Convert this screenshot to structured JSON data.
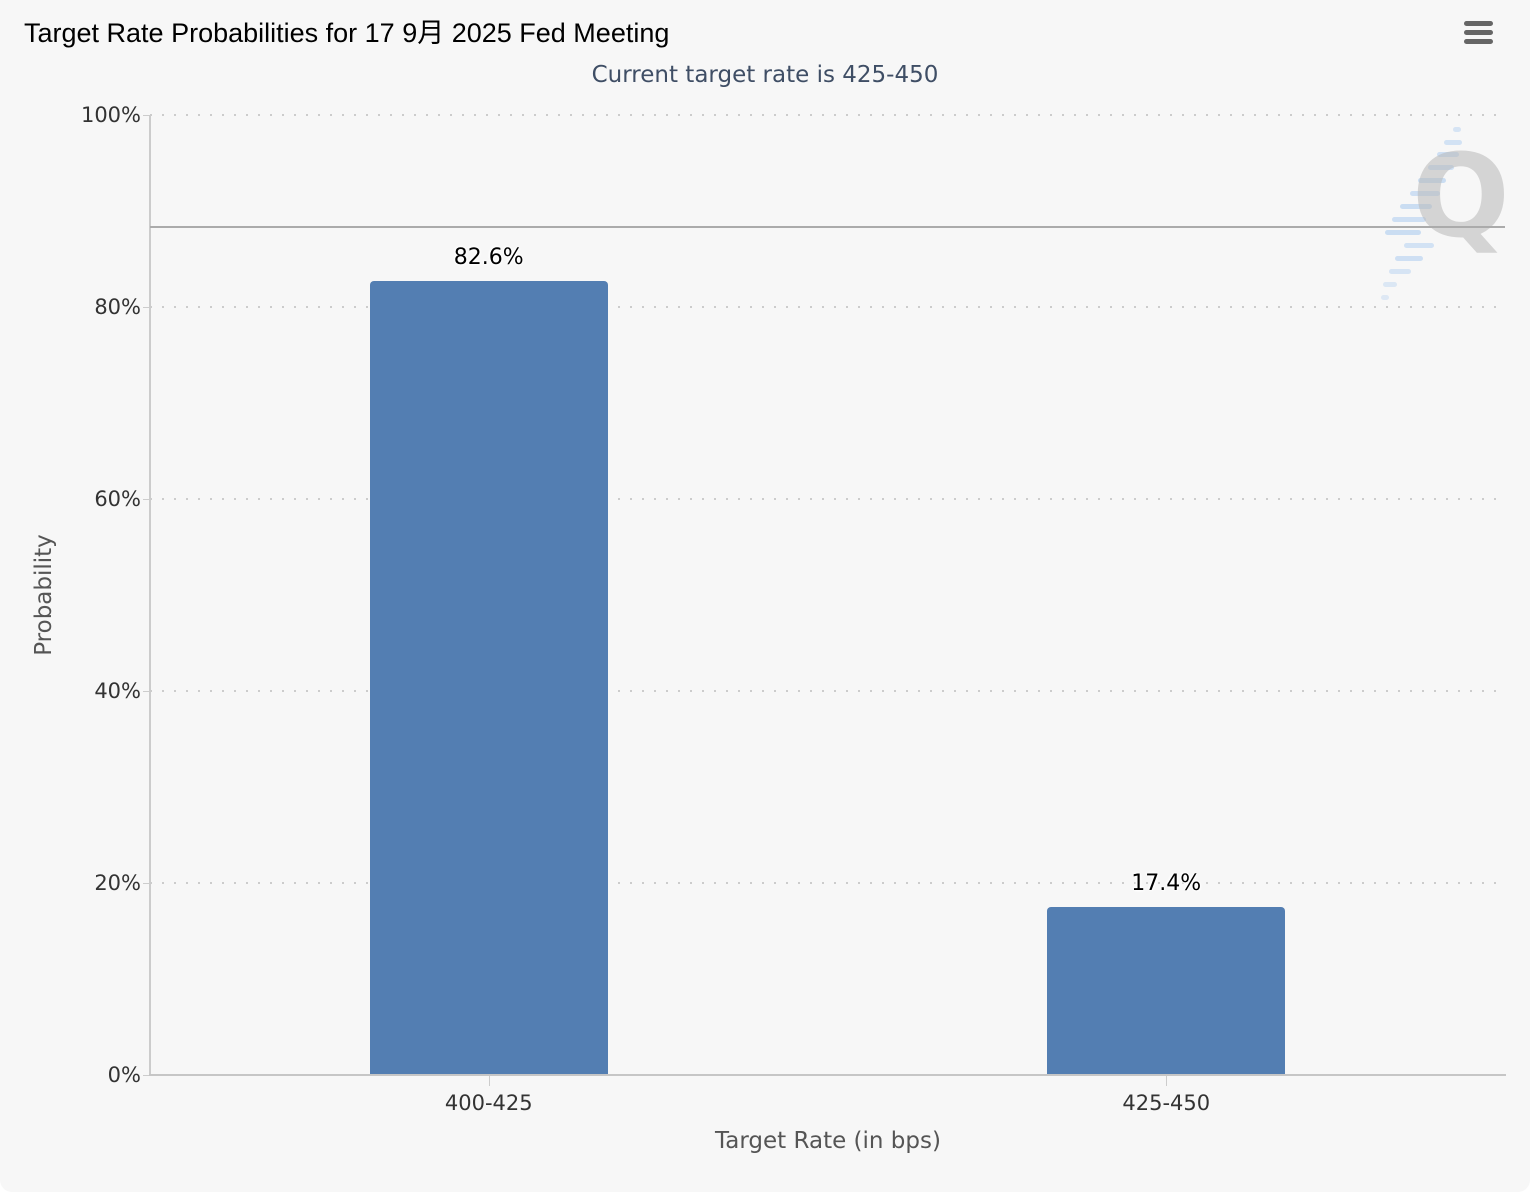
{
  "header": {
    "title": "Target Rate Probabilities for 17 9月 2025 Fed Meeting",
    "subtitle": "Current target rate is 425-450",
    "menu_icon": "hamburger-icon"
  },
  "chart_data": {
    "type": "bar",
    "title": "Target Rate Probabilities for 17 9月 2025 Fed Meeting",
    "subtitle": "Current target rate is 425-450",
    "categories": [
      "400-425",
      "425-450"
    ],
    "values": [
      82.6,
      17.4
    ],
    "value_labels": [
      "82.6%",
      "17.4%"
    ],
    "xlabel": "Target Rate (in bps)",
    "ylabel": "Probability",
    "ylim": [
      0,
      100
    ],
    "ytick_values": [
      0,
      20,
      40,
      60,
      80,
      100
    ],
    "ytick_labels": [
      "0%",
      "20%",
      "40%",
      "60%",
      "80%",
      "100%"
    ],
    "grid": "dotted-horizontal",
    "legend": "none",
    "reference_line_pct": 88.3,
    "bar_color": "#537eb2",
    "colors": {
      "panel_background": "#f7f7f7",
      "grid": "#cccccc",
      "axis": "#c6c6c6",
      "tick_text": "#333333",
      "axis_title": "#555555",
      "subtitle": "#3f4e65",
      "title": "#000000",
      "reference_line": "#ababab",
      "menu_icon": "#666666",
      "watermark": "#b9b9b9",
      "watermark_accent": "#a5c8ef"
    }
  },
  "watermark": {
    "letter": "Q"
  }
}
